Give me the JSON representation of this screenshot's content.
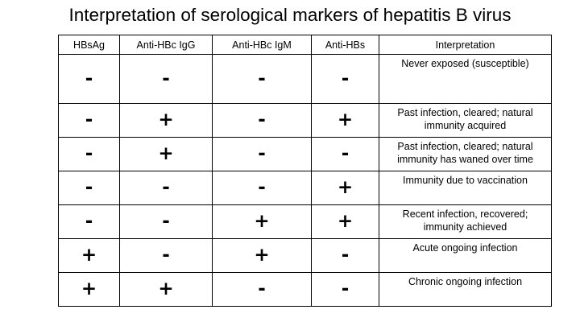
{
  "title": "Interpretation of serological markers of hepatitis B virus",
  "table": {
    "headers": [
      "HBsAg",
      "Anti-HBc IgG",
      "Anti-HBc IgM",
      "Anti-HBs",
      "Interpretation"
    ],
    "rows": [
      {
        "hbsag": "-",
        "anti_hbc_igg": "-",
        "anti_hbc_igm": "-",
        "anti_hbs": "-",
        "interpretation": "Never exposed (susceptible)"
      },
      {
        "hbsag": "-",
        "anti_hbc_igg": "+",
        "anti_hbc_igm": "-",
        "anti_hbs": "+",
        "interpretation": "Past infection, cleared; natural immunity acquired"
      },
      {
        "hbsag": "-",
        "anti_hbc_igg": "+",
        "anti_hbc_igm": "-",
        "anti_hbs": "-",
        "interpretation": "Past infection, cleared; natural immunity has waned over time"
      },
      {
        "hbsag": "-",
        "anti_hbc_igg": "-",
        "anti_hbc_igm": "-",
        "anti_hbs": "+",
        "interpretation": "Immunity due to vaccination"
      },
      {
        "hbsag": "-",
        "anti_hbc_igg": "-",
        "anti_hbc_igm": "+",
        "anti_hbs": "+",
        "interpretation": "Recent infection, recovered; immunity achieved"
      },
      {
        "hbsag": "+",
        "anti_hbc_igg": "-",
        "anti_hbc_igm": "+",
        "anti_hbs": "-",
        "interpretation": "Acute ongoing infection"
      },
      {
        "hbsag": "+",
        "anti_hbc_igg": "+",
        "anti_hbc_igm": "-",
        "anti_hbs": "-",
        "interpretation": "Chronic ongoing infection"
      }
    ]
  }
}
